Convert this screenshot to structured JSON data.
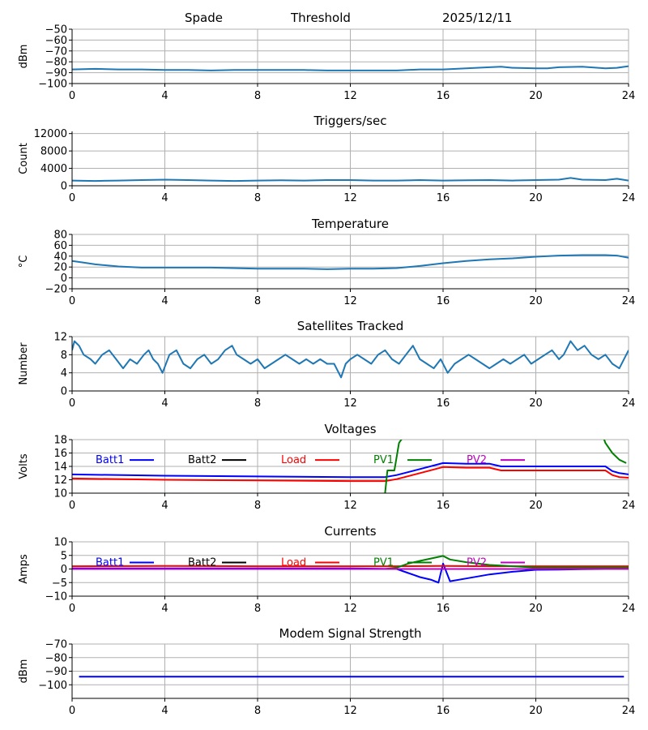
{
  "header": {
    "station": "Spade",
    "mode": "Threshold",
    "date": "2025/12/11"
  },
  "chart_data": [
    {
      "id": "signal",
      "type": "line",
      "title": "",
      "ylabel": "dBm",
      "xlim": [
        0,
        24
      ],
      "ylim": [
        -100,
        -50
      ],
      "xticks": [
        0,
        4,
        8,
        12,
        16,
        20,
        24
      ],
      "yticks": [
        -100,
        -90,
        -80,
        -70,
        -60,
        -50
      ],
      "grid": true,
      "series": [
        {
          "color": "#1f77b4",
          "x": [
            0,
            1,
            2,
            3,
            4,
            5,
            6,
            7,
            8,
            9,
            10,
            11,
            12,
            13,
            14,
            15,
            16,
            17,
            18,
            18.5,
            19,
            20,
            20.5,
            21,
            22,
            23,
            23.5,
            24
          ],
          "y": [
            -87,
            -86.5,
            -87,
            -87,
            -87.5,
            -87.5,
            -88,
            -87.5,
            -87.5,
            -87.5,
            -87.5,
            -88,
            -88,
            -88,
            -88,
            -87,
            -87,
            -86,
            -85,
            -84.5,
            -85.5,
            -86,
            -86,
            -85,
            -84.5,
            -86,
            -85.5,
            -84
          ]
        }
      ]
    },
    {
      "id": "triggers",
      "type": "line",
      "title": "Triggers/sec",
      "ylabel": "Count",
      "xlim": [
        0,
        24
      ],
      "ylim": [
        0,
        12500
      ],
      "xticks": [
        0,
        4,
        8,
        12,
        16,
        20,
        24
      ],
      "yticks": [
        0,
        4000,
        8000,
        12000
      ],
      "grid": true,
      "series": [
        {
          "color": "#1f77b4",
          "x": [
            0,
            1,
            2,
            3,
            4,
            5,
            6,
            7,
            8,
            9,
            10,
            11,
            12,
            13,
            14,
            15,
            16,
            17,
            18,
            19,
            20,
            21,
            21.5,
            22,
            23,
            23.5,
            24
          ],
          "y": [
            1200,
            1100,
            1200,
            1300,
            1400,
            1300,
            1200,
            1100,
            1200,
            1250,
            1200,
            1300,
            1300,
            1200,
            1200,
            1300,
            1200,
            1250,
            1300,
            1200,
            1300,
            1400,
            1800,
            1400,
            1300,
            1600,
            1200
          ]
        }
      ]
    },
    {
      "id": "temperature",
      "type": "line",
      "title": "Temperature",
      "ylabel": "°C",
      "xlim": [
        0,
        24
      ],
      "ylim": [
        -20,
        80
      ],
      "xticks": [
        0,
        4,
        8,
        12,
        16,
        20,
        24
      ],
      "yticks": [
        -20,
        0,
        20,
        40,
        60,
        80
      ],
      "grid": true,
      "series": [
        {
          "color": "#1f77b4",
          "x": [
            0,
            0.5,
            1,
            2,
            3,
            4,
            6,
            8,
            10,
            11,
            12,
            13,
            14,
            15,
            16,
            17,
            18,
            19,
            20,
            21,
            22,
            23,
            23.5,
            24
          ],
          "y": [
            31,
            28,
            25,
            21,
            19,
            19,
            19,
            17,
            17,
            16,
            17,
            17,
            18,
            22,
            27,
            31,
            34,
            36,
            39,
            41,
            42,
            42,
            41,
            37
          ]
        }
      ]
    },
    {
      "id": "satellites",
      "type": "line",
      "title": "Satellites Tracked",
      "ylabel": "Number",
      "xlim": [
        0,
        24
      ],
      "ylim": [
        0,
        12
      ],
      "xticks": [
        0,
        4,
        8,
        12,
        16,
        20,
        24
      ],
      "yticks": [
        0,
        4,
        8,
        12
      ],
      "grid": true,
      "series": [
        {
          "color": "#1f77b4",
          "x": [
            0,
            0.1,
            0.3,
            0.5,
            0.8,
            1,
            1.3,
            1.6,
            1.9,
            2.2,
            2.5,
            2.8,
            3.1,
            3.3,
            3.5,
            3.7,
            3.9,
            4.2,
            4.5,
            4.8,
            5.1,
            5.4,
            5.7,
            6,
            6.3,
            6.6,
            6.9,
            7.1,
            7.4,
            7.7,
            8,
            8.3,
            8.6,
            8.9,
            9.2,
            9.5,
            9.8,
            10.1,
            10.4,
            10.7,
            11,
            11.3,
            11.6,
            11.8,
            12,
            12.3,
            12.6,
            12.9,
            13.2,
            13.5,
            13.8,
            14.1,
            14.4,
            14.7,
            15,
            15.3,
            15.6,
            15.9,
            16.2,
            16.5,
            16.8,
            17.1,
            17.4,
            17.7,
            18,
            18.3,
            18.6,
            18.9,
            19.2,
            19.5,
            19.8,
            20.1,
            20.4,
            20.7,
            21,
            21.2,
            21.5,
            21.8,
            22.1,
            22.4,
            22.7,
            23,
            23.3,
            23.6,
            23.8,
            24
          ],
          "y": [
            9,
            11,
            10,
            8,
            7,
            6,
            8,
            9,
            7,
            5,
            7,
            6,
            8,
            9,
            7,
            6,
            4,
            8,
            9,
            6,
            5,
            7,
            8,
            6,
            7,
            9,
            10,
            8,
            7,
            6,
            7,
            5,
            6,
            7,
            8,
            7,
            6,
            7,
            6,
            7,
            6,
            6,
            3,
            6,
            7,
            8,
            7,
            6,
            8,
            9,
            7,
            6,
            8,
            10,
            7,
            6,
            5,
            7,
            4,
            6,
            7,
            8,
            7,
            6,
            5,
            6,
            7,
            6,
            7,
            8,
            6,
            7,
            8,
            9,
            7,
            8,
            11,
            9,
            10,
            8,
            7,
            8,
            6,
            5,
            7,
            9
          ]
        }
      ]
    },
    {
      "id": "voltages",
      "type": "line",
      "title": "Voltages",
      "ylabel": "Volts",
      "xlim": [
        0,
        24
      ],
      "ylim": [
        10,
        18
      ],
      "xticks": [
        0,
        4,
        8,
        12,
        16,
        20,
        24
      ],
      "yticks": [
        10,
        12,
        14,
        16,
        18
      ],
      "grid": true,
      "legend": [
        "Batt1",
        "Batt2",
        "Load",
        "PV1",
        "PV2"
      ],
      "series": [
        {
          "name": "Batt1",
          "color": "#0000ff",
          "x": [
            0,
            4,
            8,
            12,
            13.5,
            14,
            15,
            16,
            17,
            18,
            18.5,
            20,
            22,
            23,
            23.3,
            23.6,
            24
          ],
          "y": [
            12.8,
            12.6,
            12.5,
            12.4,
            12.4,
            12.7,
            13.6,
            14.5,
            14.4,
            14.4,
            14.0,
            14.0,
            14.0,
            14.0,
            13.3,
            13.0,
            12.8
          ]
        },
        {
          "name": "Batt2",
          "color": "#000000",
          "x": [],
          "y": []
        },
        {
          "name": "Load",
          "color": "#ff0000",
          "x": [
            0,
            4,
            8,
            12,
            13.5,
            14,
            15,
            16,
            17,
            18,
            18.5,
            20,
            22,
            23,
            23.3,
            23.6,
            24
          ],
          "y": [
            12.2,
            12.0,
            11.9,
            11.8,
            11.8,
            12.1,
            13.0,
            13.9,
            13.8,
            13.8,
            13.4,
            13.4,
            13.4,
            13.4,
            12.7,
            12.4,
            12.3
          ]
        },
        {
          "name": "PV1",
          "color": "#008000",
          "x": [
            13.5,
            13.6,
            13.9,
            14.1,
            14.3,
            22.9,
            23,
            23.3,
            23.6,
            23.9
          ],
          "y": [
            10,
            13.4,
            13.4,
            17.5,
            18.5,
            18.5,
            17.5,
            16,
            15,
            14.5
          ]
        },
        {
          "name": "PV2",
          "color": "#bf00bf",
          "x": [],
          "y": []
        }
      ]
    },
    {
      "id": "currents",
      "type": "line",
      "title": "Currents",
      "ylabel": "Amps",
      "xlim": [
        0,
        24
      ],
      "ylim": [
        -10,
        10
      ],
      "xticks": [
        0,
        4,
        8,
        12,
        16,
        20,
        24
      ],
      "yticks": [
        -10,
        -5,
        0,
        5,
        10
      ],
      "grid": true,
      "legend": [
        "Batt1",
        "Batt2",
        "Load",
        "PV1",
        "PV2"
      ],
      "series": [
        {
          "name": "Batt1",
          "color": "#0000ff",
          "x": [
            0,
            4,
            8,
            12,
            14,
            14.5,
            15,
            15.5,
            15.8,
            16,
            16.3,
            17,
            18,
            19,
            20,
            21,
            22,
            23,
            24
          ],
          "y": [
            0.2,
            0.2,
            0.2,
            0.2,
            0,
            -1.5,
            -3,
            -4,
            -5,
            2,
            -4.5,
            -3.5,
            -2,
            -1,
            -0.3,
            -0.2,
            -0.1,
            0,
            0.3
          ]
        },
        {
          "name": "Batt2",
          "color": "#000000",
          "x": [],
          "y": []
        },
        {
          "name": "Load",
          "color": "#ff0000",
          "x": [
            0,
            4,
            8,
            12,
            14,
            16,
            18,
            20,
            22,
            24
          ],
          "y": [
            1,
            1.1,
            1,
            1,
            1,
            1.1,
            1,
            1,
            1,
            1
          ]
        },
        {
          "name": "PV1",
          "color": "#008000",
          "x": [
            0,
            13.5,
            14,
            14.5,
            15,
            16,
            16.3,
            17,
            18,
            19,
            20,
            22,
            24
          ],
          "y": [
            0,
            0,
            0.5,
            2,
            3,
            4.8,
            3.5,
            2.5,
            1.5,
            1,
            0.5,
            0.5,
            0.5
          ]
        },
        {
          "name": "PV2",
          "color": "#bf00bf",
          "x": [
            0,
            24
          ],
          "y": [
            0,
            0
          ]
        }
      ]
    },
    {
      "id": "modem",
      "type": "line",
      "title": "Modem Signal Strength",
      "ylabel": "dBm",
      "xlim": [
        0,
        24
      ],
      "ylim": [
        -110,
        -70
      ],
      "xticks": [
        0,
        4,
        8,
        12,
        16,
        20,
        24
      ],
      "yticks": [
        -100,
        -90,
        -80,
        -70
      ],
      "grid": true,
      "series": [
        {
          "color": "#0000ff",
          "x": [
            0.3,
            23.8
          ],
          "y": [
            -94,
            -94
          ]
        }
      ]
    }
  ]
}
